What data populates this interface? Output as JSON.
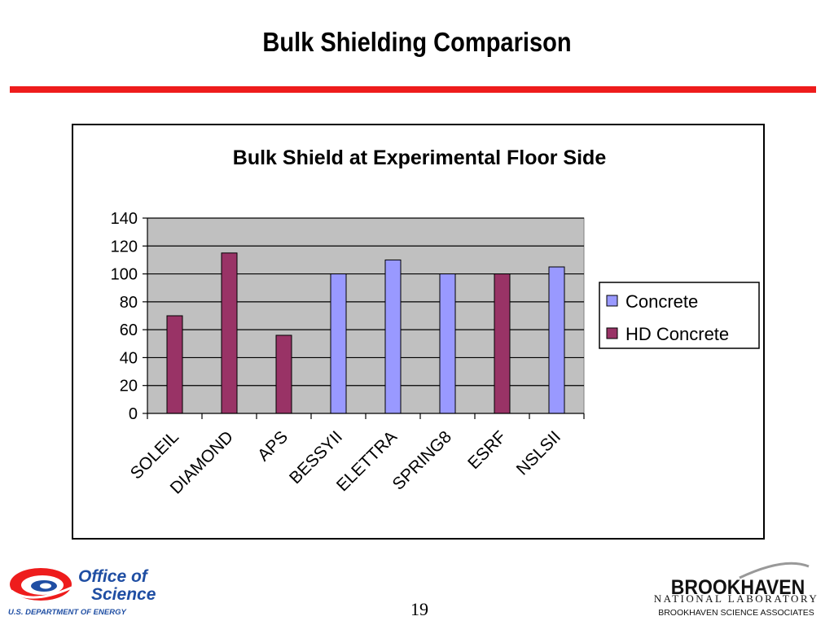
{
  "slide": {
    "title": "Bulk Shielding Comparison",
    "page_number": "19",
    "accent_color": "#ee1c1c"
  },
  "footer": {
    "left_logo": {
      "line1": "Office of",
      "line2": "Science",
      "line3": "U.S. DEPARTMENT OF ENERGY",
      "icon": "doe-office-of-science-logo"
    },
    "right_logo": {
      "word": "BROOKHAVEN",
      "line2": "NATIONAL LABORATORY",
      "line3": "BROOKHAVEN SCIENCE ASSOCIATES",
      "icon": "brookhaven-logo"
    }
  },
  "chart_data": {
    "type": "bar",
    "title": "Bulk Shield at Experimental Floor Side",
    "xlabel": "",
    "ylabel": "",
    "ylim": [
      0,
      140
    ],
    "yticks": [
      0,
      20,
      40,
      60,
      80,
      100,
      120,
      140
    ],
    "grid": true,
    "legend_position": "right",
    "plot_background": "#c0c0c0",
    "categories": [
      "SOLEIL",
      "DIAMOND",
      "APS",
      "BESSYII",
      "ELETTRA",
      "SPRING8",
      "ESRF",
      "NSLSII"
    ],
    "series": [
      {
        "name": "Concrete",
        "color": "#9999ff",
        "values": [
          null,
          null,
          null,
          100,
          110,
          100,
          null,
          105
        ]
      },
      {
        "name": "HD Concrete",
        "color": "#993366",
        "values": [
          70,
          115,
          56,
          null,
          null,
          null,
          100,
          null
        ]
      }
    ]
  }
}
